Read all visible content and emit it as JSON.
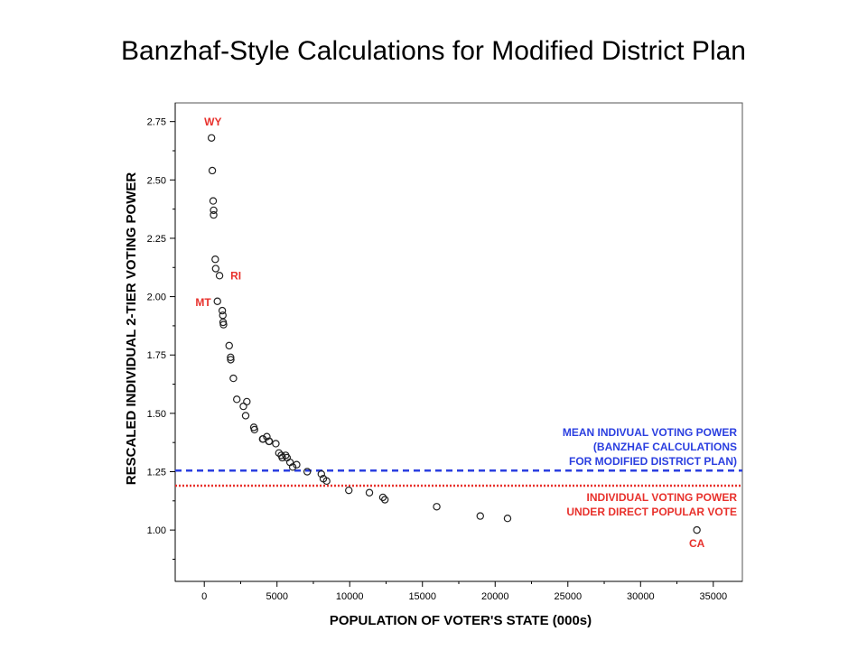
{
  "title": "Banzhaf-Style Calculations for Modified District Plan",
  "chart_data": {
    "type": "scatter",
    "xlabel": "POPULATION OF VOTER'S STATE (000s)",
    "ylabel": "RESCALED INDIVIDUAL 2-TIER VOTING POWER",
    "xlim": [
      -2000,
      37000
    ],
    "ylim": [
      0.78,
      2.83
    ],
    "x_ticks": [
      0,
      5000,
      10000,
      15000,
      20000,
      25000,
      30000,
      35000
    ],
    "y_ticks": [
      "1.00",
      "1.25",
      "1.50",
      "1.75",
      "2.00",
      "2.25",
      "2.50",
      "2.75"
    ],
    "grid": false,
    "points": [
      {
        "x": 494,
        "y": 2.68,
        "label": "WY"
      },
      {
        "x": 550,
        "y": 2.54
      },
      {
        "x": 609,
        "y": 2.41
      },
      {
        "x": 643,
        "y": 2.37
      },
      {
        "x": 642,
        "y": 2.35
      },
      {
        "x": 754,
        "y": 2.16
      },
      {
        "x": 784,
        "y": 2.12
      },
      {
        "x": 1048,
        "y": 2.09,
        "label": "RI"
      },
      {
        "x": 902,
        "y": 1.98,
        "label": "MT"
      },
      {
        "x": 1236,
        "y": 1.94
      },
      {
        "x": 1275,
        "y": 1.92
      },
      {
        "x": 1294,
        "y": 1.89
      },
      {
        "x": 1321,
        "y": 1.88
      },
      {
        "x": 1711,
        "y": 1.79
      },
      {
        "x": 1808,
        "y": 1.74
      },
      {
        "x": 1819,
        "y": 1.73
      },
      {
        "x": 2000,
        "y": 1.65
      },
      {
        "x": 2236,
        "y": 1.56
      },
      {
        "x": 2688,
        "y": 1.53
      },
      {
        "x": 2926,
        "y": 1.55
      },
      {
        "x": 2844,
        "y": 1.49
      },
      {
        "x": 3405,
        "y": 1.44
      },
      {
        "x": 3450,
        "y": 1.43
      },
      {
        "x": 4012,
        "y": 1.39
      },
      {
        "x": 4041,
        "y": 1.39
      },
      {
        "x": 4301,
        "y": 1.4
      },
      {
        "x": 4447,
        "y": 1.38
      },
      {
        "x": 4469,
        "y": 1.38
      },
      {
        "x": 4919,
        "y": 1.37
      },
      {
        "x": 5130,
        "y": 1.33
      },
      {
        "x": 5296,
        "y": 1.32
      },
      {
        "x": 5363,
        "y": 1.31
      },
      {
        "x": 5595,
        "y": 1.32
      },
      {
        "x": 5689,
        "y": 1.31
      },
      {
        "x": 5894,
        "y": 1.29
      },
      {
        "x": 6080,
        "y": 1.27
      },
      {
        "x": 6349,
        "y": 1.28
      },
      {
        "x": 7078,
        "y": 1.25
      },
      {
        "x": 8049,
        "y": 1.24
      },
      {
        "x": 8186,
        "y": 1.22
      },
      {
        "x": 8414,
        "y": 1.21
      },
      {
        "x": 9938,
        "y": 1.17
      },
      {
        "x": 11353,
        "y": 1.16
      },
      {
        "x": 12281,
        "y": 1.14
      },
      {
        "x": 12419,
        "y": 1.13
      },
      {
        "x": 15982,
        "y": 1.1
      },
      {
        "x": 18976,
        "y": 1.06
      },
      {
        "x": 20852,
        "y": 1.05
      },
      {
        "x": 33872,
        "y": 1.0,
        "label": "CA"
      }
    ],
    "reference_lines": [
      {
        "y": 1.255,
        "color": "#2b3fe0",
        "style": "dashed",
        "annotation": [
          "MEAN INDIVUAL VOTING POWER",
          "(BANZHAF CALCULATIONS",
          "FOR MODIFIED DISTRICT PLAN)"
        ]
      },
      {
        "y": 1.19,
        "color": "#e8312c",
        "style": "dotted",
        "annotation": [
          "INDIVIDUAL VOTING POWER",
          "UNDER DIRECT POPULAR VOTE"
        ]
      }
    ],
    "colors": {
      "points": "#222222",
      "point_labels": "#e8312c",
      "frame": "#555555",
      "axis": "#000000"
    }
  }
}
